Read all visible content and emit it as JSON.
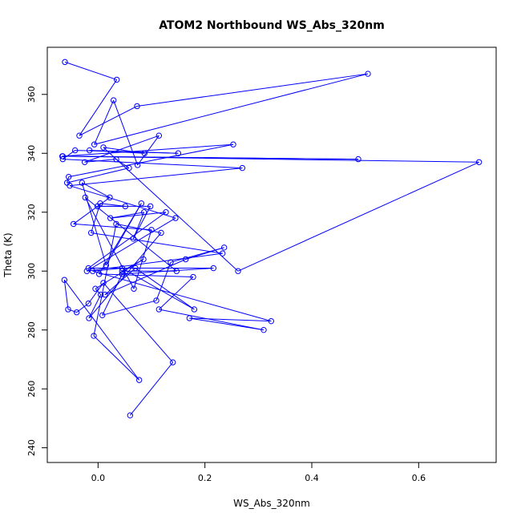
{
  "chart_data": {
    "type": "line",
    "title": "ATOM2 Northbound WS_Abs_320nm",
    "xlabel": "WS_Abs_320nm",
    "ylabel": "Theta (K)",
    "xlim": [
      -0.095,
      0.745
    ],
    "ylim": [
      235,
      376
    ],
    "x_ticks": [
      0.0,
      0.2,
      0.4,
      0.6
    ],
    "x_tick_labels": [
      "0.0",
      "0.2",
      "0.4",
      "0.6"
    ],
    "y_ticks": [
      240,
      260,
      280,
      300,
      320,
      340,
      360
    ],
    "y_tick_labels": [
      "240",
      "260",
      "280",
      "300",
      "320",
      "340",
      "360"
    ],
    "grid": false,
    "legend": "none",
    "marker": "open-circle",
    "line_color": "#0000ff",
    "series": [
      {
        "x": [
          -0.062,
          0.035,
          -0.035,
          0.073,
          0.505,
          -0.007,
          0.029,
          0.074,
          0.114,
          -0.025,
          0.034,
          0.058,
          -0.058,
          -0.055,
          0.253,
          -0.066,
          0.487,
          -0.067,
          0.713,
          0.262,
          0.01,
          0.087,
          -0.016,
          0.15,
          -0.043,
          -0.066,
          0.27,
          -0.053,
          0.145,
          -0.021,
          0.233,
          -0.013,
          0.004,
          0.051,
          -0.001,
          0.098,
          0.066,
          0.086,
          0.023,
          0.127,
          -0.018,
          0.216,
          0.045,
          0.008,
          0.109,
          0.136,
          0.236,
          0.164,
          0.013,
          0.07,
          0.18,
          0.045,
          -0.01,
          0.324,
          0.171,
          0.31,
          0.114,
          0.178,
          0.002,
          0.081,
          0.015,
          -0.03,
          0.022,
          -0.046,
          0.1,
          0.067,
          -0.024,
          0.147,
          0.045,
          0.085,
          -0.005,
          0.005,
          -0.017,
          0.118,
          0.034,
          -0.008,
          0.077,
          -0.063,
          -0.056,
          -0.04,
          -0.018,
          0.01,
          0.14,
          0.06
        ],
        "y": [
          371,
          365,
          346,
          356,
          367,
          343,
          358,
          336,
          346,
          337,
          338,
          335,
          330,
          332,
          343,
          339,
          338,
          339,
          337,
          300,
          342,
          340,
          341,
          340,
          341,
          338,
          335,
          329,
          318,
          300,
          306,
          313,
          323,
          322,
          322,
          322,
          311,
          320,
          318,
          320,
          301,
          301,
          299,
          285,
          290,
          303,
          308,
          304,
          292,
          301,
          287,
          301,
          300,
          283,
          284,
          280,
          287,
          298,
          299,
          323,
          302,
          330,
          325,
          316,
          314,
          294,
          325,
          300,
          300,
          304,
          294,
          292,
          284,
          313,
          316,
          278,
          263,
          297,
          287,
          286,
          289,
          296,
          269,
          251
        ]
      }
    ]
  }
}
